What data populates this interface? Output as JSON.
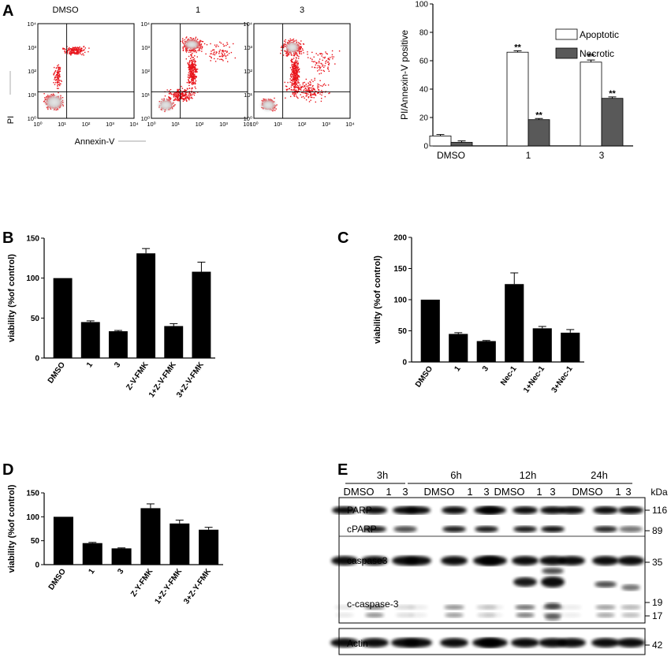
{
  "panels": {
    "A": "A",
    "B": "B",
    "C": "C",
    "D": "D",
    "E": "E"
  },
  "flow": {
    "titles": [
      "DMSO",
      "1",
      "3"
    ],
    "xlabel": "Annexin-V",
    "ylabel": "PI",
    "ticks": [
      "10⁰",
      "10¹",
      "10²",
      "10³",
      "10⁴"
    ]
  },
  "chart_data": [
    {
      "panel": "A",
      "type": "bar",
      "categories": [
        "DMSO",
        "1",
        "3"
      ],
      "series": [
        {
          "name": "Apoptotic",
          "values": [
            7,
            66,
            59
          ],
          "errors": [
            1,
            1,
            1.5
          ],
          "sig": [
            "",
            "**",
            "**"
          ],
          "color": "#ffffff"
        },
        {
          "name": "Necrotic",
          "values": [
            2.5,
            18.5,
            33.5
          ],
          "errors": [
            1,
            0.8,
            1
          ],
          "sig": [
            "",
            "**",
            "**"
          ],
          "color": "#595959"
        }
      ],
      "ylabel": "PI/Annexin-V positive",
      "ylim": [
        0,
        100
      ],
      "yticks": [
        0,
        20,
        40,
        60,
        80,
        100
      ],
      "legend": "top-right"
    },
    {
      "panel": "B",
      "type": "bar",
      "categories": [
        "DMSO",
        "1",
        "3",
        "Z-V-FMK",
        "1+Z-V-FMK",
        "3+Z-V-FMK"
      ],
      "values": [
        100,
        45,
        33.5,
        131,
        40,
        108
      ],
      "errors": [
        0,
        1.5,
        1,
        6,
        3,
        12
      ],
      "ylabel": "viability (%of control)",
      "ylim": [
        0,
        150
      ],
      "yticks": [
        0,
        50,
        100,
        150
      ]
    },
    {
      "panel": "C",
      "type": "bar",
      "categories": [
        "DMSO",
        "1",
        "3",
        "Nec-1",
        "1+Nec-1",
        "3+Nec-1"
      ],
      "values": [
        100,
        45,
        33.5,
        125,
        54,
        47
      ],
      "errors": [
        0,
        2,
        1,
        18,
        3,
        5
      ],
      "ylabel": "viability (%of  control)",
      "ylim": [
        0,
        200
      ],
      "yticks": [
        0,
        50,
        100,
        150,
        200
      ]
    },
    {
      "panel": "D",
      "type": "bar",
      "categories": [
        "DMSO",
        "1",
        "3",
        "Z-Y-FMK",
        "1+Z-Y-FMK",
        "3+Z-Y-FMK"
      ],
      "values": [
        100,
        45,
        34,
        118,
        86,
        73
      ],
      "errors": [
        0,
        1.5,
        1,
        9,
        7,
        5
      ],
      "ylabel": "viability (%of control)",
      "ylim": [
        0,
        150
      ],
      "yticks": [
        0,
        50,
        100,
        150
      ]
    }
  ],
  "blot": {
    "timepoints": [
      "3h",
      "6h",
      "12h",
      "24h"
    ],
    "lane_labels": [
      "DMSO",
      "1",
      "3"
    ],
    "unit": "kDa",
    "bands": [
      {
        "label": "PARP",
        "kda": "116"
      },
      {
        "label": "cPARP",
        "kda": "89"
      },
      {
        "label": "caspase3",
        "kda": "35"
      },
      {
        "label": "c-caspase-3",
        "kda": "19",
        "kda2": "17"
      },
      {
        "label": "Actin",
        "kda": "42"
      }
    ]
  }
}
